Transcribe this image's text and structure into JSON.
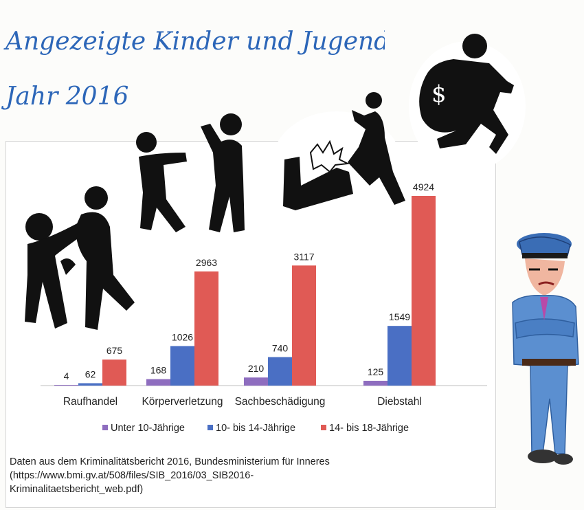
{
  "header": {
    "title_line1": "Angezeigte Kinder und Jugendliche im",
    "title_line2": "Jahr 2016"
  },
  "chart_data": {
    "type": "bar",
    "categories": [
      "Raufhandel",
      "Körperverletzung",
      "Sachbeschädigung",
      "Diebstahl"
    ],
    "series": [
      {
        "name": "Unter 10-Jährige",
        "values": [
          4,
          168,
          210,
          125
        ],
        "color": "#8e6dbf"
      },
      {
        "name": "10- bis 14-Jährige",
        "values": [
          62,
          1026,
          740,
          1549
        ],
        "color": "#4a6fc4"
      },
      {
        "name": "14- bis 18-Jährige",
        "values": [
          675,
          2963,
          3117,
          4924
        ],
        "color": "#e05a55"
      }
    ],
    "ylim": [
      0,
      4924
    ],
    "grid": false,
    "legend": "bottom"
  },
  "source": {
    "line1": "Daten aus dem Kriminalitätsbericht 2016, Bundesministerium für Inneres",
    "line2": "(https://www.bmi.gv.at/508/files/SIB_2016/03_SIB2016-",
    "line3": "Kriminalitaetsbericht_web.pdf)"
  },
  "illustrations": [
    "fighting-figures-icon",
    "punching-figures-icon",
    "vandalism-figure-icon",
    "thief-with-money-bag-icon",
    "police-officer-drawing"
  ]
}
